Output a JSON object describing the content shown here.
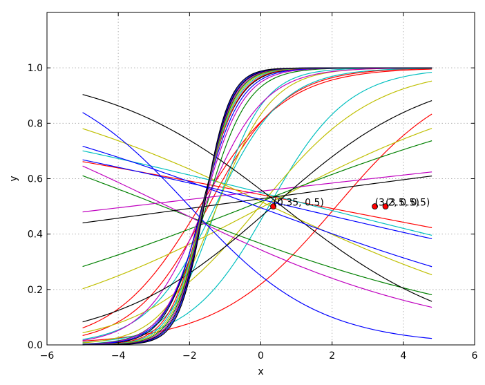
{
  "chart_data": {
    "type": "line",
    "title": "",
    "xlabel": "x",
    "ylabel": "y",
    "xlim": [
      -6,
      6
    ],
    "ylim": [
      0,
      1.2
    ],
    "x_ticks": [
      -6,
      -4,
      -2,
      0,
      2,
      4,
      6
    ],
    "y_ticks": [
      0.0,
      0.2,
      0.4,
      0.6,
      0.8,
      1.0
    ],
    "x_tick_labels": [
      "−6",
      "−4",
      "−2",
      "0",
      "2",
      "4",
      "6"
    ],
    "y_tick_labels": [
      "0.0",
      "0.2",
      "0.4",
      "0.6",
      "0.8",
      "1.0"
    ],
    "grid": true,
    "x_range_of_curves": [
      -5,
      4.8
    ],
    "series_function": "logistic y = 1 / (1 + exp(-(a*x + b)))",
    "series": [
      {
        "a": 0.83,
        "b": 1.42,
        "color": "#ff0000"
      },
      {
        "a": 0.95,
        "b": 1.4,
        "color": "#ff0000"
      },
      {
        "a": 0.6,
        "b": -1.27,
        "color": "#ff0000"
      },
      {
        "a": -0.1,
        "b": 0.17,
        "color": "#ff0000"
      },
      {
        "a": 0.9,
        "b": -0.2,
        "color": "#00bfbf"
      },
      {
        "a": 1.05,
        "b": 1.35,
        "color": "#00bfbf"
      },
      {
        "a": 1.5,
        "b": 1.85,
        "color": "#00bfbf"
      },
      {
        "a": -0.13,
        "b": 0.2,
        "color": "#00bfbf"
      },
      {
        "a": 0.62,
        "b": 0.02,
        "color": "#bfbf00"
      },
      {
        "a": 1.3,
        "b": 1.6,
        "color": "#bfbf00"
      },
      {
        "a": 0.27,
        "b": -0.02,
        "color": "#bfbf00"
      },
      {
        "a": -0.24,
        "b": 0.07,
        "color": "#bfbf00"
      },
      {
        "a": 0.2,
        "b": 0.07,
        "color": "#008000"
      },
      {
        "a": -0.2,
        "b": -0.55,
        "color": "#008000"
      },
      {
        "a": 1.7,
        "b": 2.6,
        "color": "#008000"
      },
      {
        "a": 1.2,
        "b": 1.9,
        "color": "#bf00bf"
      },
      {
        "a": -0.25,
        "b": -0.65,
        "color": "#bf00bf"
      },
      {
        "a": 0.06,
        "b": 0.22,
        "color": "#bf00bf"
      },
      {
        "a": 1.8,
        "b": 2.9,
        "color": "#bf00bf"
      },
      {
        "a": 0.07,
        "b": 0.11,
        "color": "#000000"
      },
      {
        "a": 0.45,
        "b": -0.15,
        "color": "#000000"
      },
      {
        "a": -0.4,
        "b": 0.24,
        "color": "#000000"
      },
      {
        "a": 2.0,
        "b": 3.3,
        "color": "#000000"
      },
      {
        "a": -0.12,
        "b": 0.1,
        "color": "#0000ff"
      },
      {
        "a": -0.55,
        "b": -1.1,
        "color": "#0000ff"
      },
      {
        "a": -0.19,
        "b": -0.02,
        "color": "#0000ff"
      },
      {
        "a": 1.9,
        "b": 3.1,
        "color": "#0000ff"
      },
      {
        "a": 2.1,
        "b": 3.4,
        "color": "#ff0000"
      },
      {
        "a": 2.2,
        "b": 3.55,
        "color": "#00bfbf"
      },
      {
        "a": 2.3,
        "b": 3.7,
        "color": "#bfbf00"
      },
      {
        "a": 2.4,
        "b": 3.85,
        "color": "#008000"
      },
      {
        "a": 2.5,
        "b": 4.0,
        "color": "#bf00bf"
      },
      {
        "a": 2.6,
        "b": 4.15,
        "color": "#000000"
      },
      {
        "a": 2.7,
        "b": 4.3,
        "color": "#0000ff"
      },
      {
        "a": 2.8,
        "b": 4.45,
        "color": "#000000"
      }
    ],
    "points": [
      {
        "x": 0.35,
        "y": 0.5,
        "label": "(0.35, 0.5)",
        "color": "#ff0000"
      },
      {
        "x": 3.2,
        "y": 0.5,
        "label": "(3.2, 0.5)",
        "color": "#ff0000"
      },
      {
        "x": 3.5,
        "y": 0.5,
        "label": "(3.5, 0.5)",
        "color": "#ff0000"
      }
    ]
  }
}
